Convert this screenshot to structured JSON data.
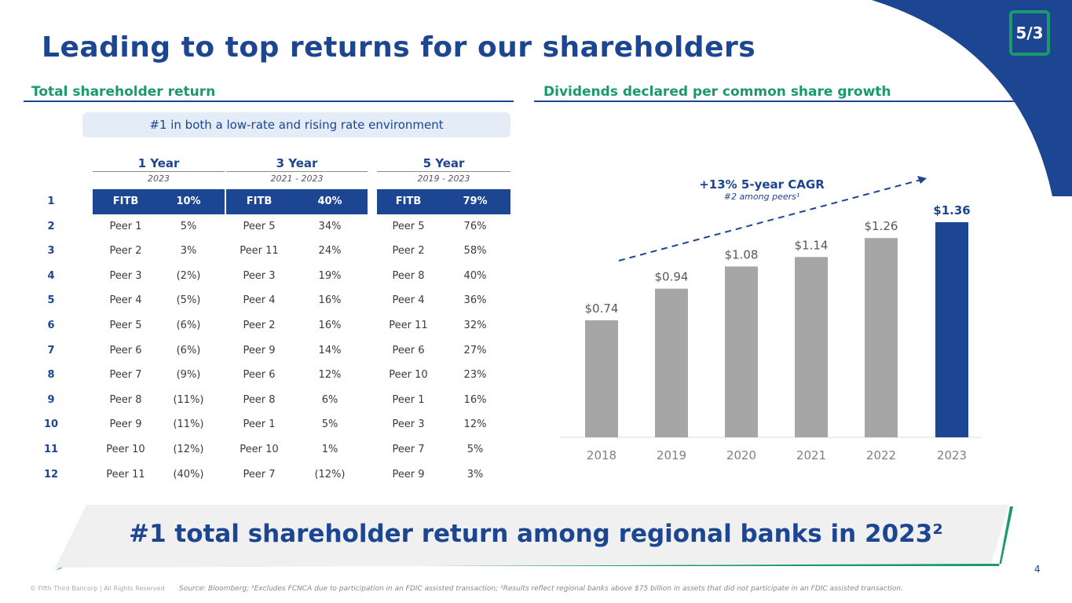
{
  "title": "Leading to top returns for our shareholders",
  "left": {
    "heading": "Total shareholder return",
    "banner": "#1 in both a low-rate and rising rate environment",
    "periods": [
      {
        "label": "1 Year",
        "range": "2023"
      },
      {
        "label": "3 Year",
        "range": "2021 - 2023"
      },
      {
        "label": "5 Year",
        "range": "2019 - 2023"
      }
    ],
    "rows": [
      [
        "1",
        "FITB",
        "10%",
        "FITB",
        "40%",
        "FITB",
        "79%"
      ],
      [
        "2",
        "Peer 1",
        "5%",
        "Peer 5",
        "34%",
        "Peer 5",
        "76%"
      ],
      [
        "3",
        "Peer 2",
        "3%",
        "Peer 11",
        "24%",
        "Peer 2",
        "58%"
      ],
      [
        "4",
        "Peer 3",
        "(2%)",
        "Peer 3",
        "19%",
        "Peer 8",
        "40%"
      ],
      [
        "5",
        "Peer 4",
        "(5%)",
        "Peer 4",
        "16%",
        "Peer 4",
        "36%"
      ],
      [
        "6",
        "Peer 5",
        "(6%)",
        "Peer 2",
        "16%",
        "Peer 11",
        "32%"
      ],
      [
        "7",
        "Peer 6",
        "(6%)",
        "Peer 9",
        "14%",
        "Peer 6",
        "27%"
      ],
      [
        "8",
        "Peer 7",
        "(9%)",
        "Peer 6",
        "12%",
        "Peer 10",
        "23%"
      ],
      [
        "9",
        "Peer 8",
        "(11%)",
        "Peer 8",
        "6%",
        "Peer 1",
        "16%"
      ],
      [
        "10",
        "Peer 9",
        "(11%)",
        "Peer 1",
        "5%",
        "Peer 3",
        "12%"
      ],
      [
        "11",
        "Peer 10",
        "(12%)",
        "Peer 10",
        "1%",
        "Peer 7",
        "5%"
      ],
      [
        "12",
        "Peer 11",
        "(40%)",
        "Peer 7",
        "(12%)",
        "Peer 9",
        "3%"
      ]
    ]
  },
  "chart_data": {
    "type": "bar",
    "title": "Dividends declared per common share growth",
    "categories": [
      "2018",
      "2019",
      "2020",
      "2021",
      "2022",
      "2023"
    ],
    "values": [
      0.74,
      0.94,
      1.08,
      1.14,
      1.26,
      1.36
    ],
    "labels": [
      "$0.74",
      "$0.94",
      "$1.08",
      "$1.14",
      "$1.26",
      "$1.36"
    ],
    "highlight": "2023",
    "ylim": [
      0,
      1.36
    ],
    "annotation": "+13% 5-year CAGR",
    "annotation_sub": "#2 among peers¹",
    "colors": {
      "default": "#a6a6a6",
      "highlight": "#1c4592"
    }
  },
  "banner": "#1 total shareholder return among regional banks in 2023²",
  "footer": "Source: Bloomberg; ¹Excludes FCNCA due to participation in an FDIC assisted transaction; ²Results reflect regional banks above $75 billion in assets that did not participate in an FDIC assisted transaction.",
  "copyright": "© Fifth Third Bancorp | All Rights Reserved",
  "page": "4",
  "logo": "5/3"
}
